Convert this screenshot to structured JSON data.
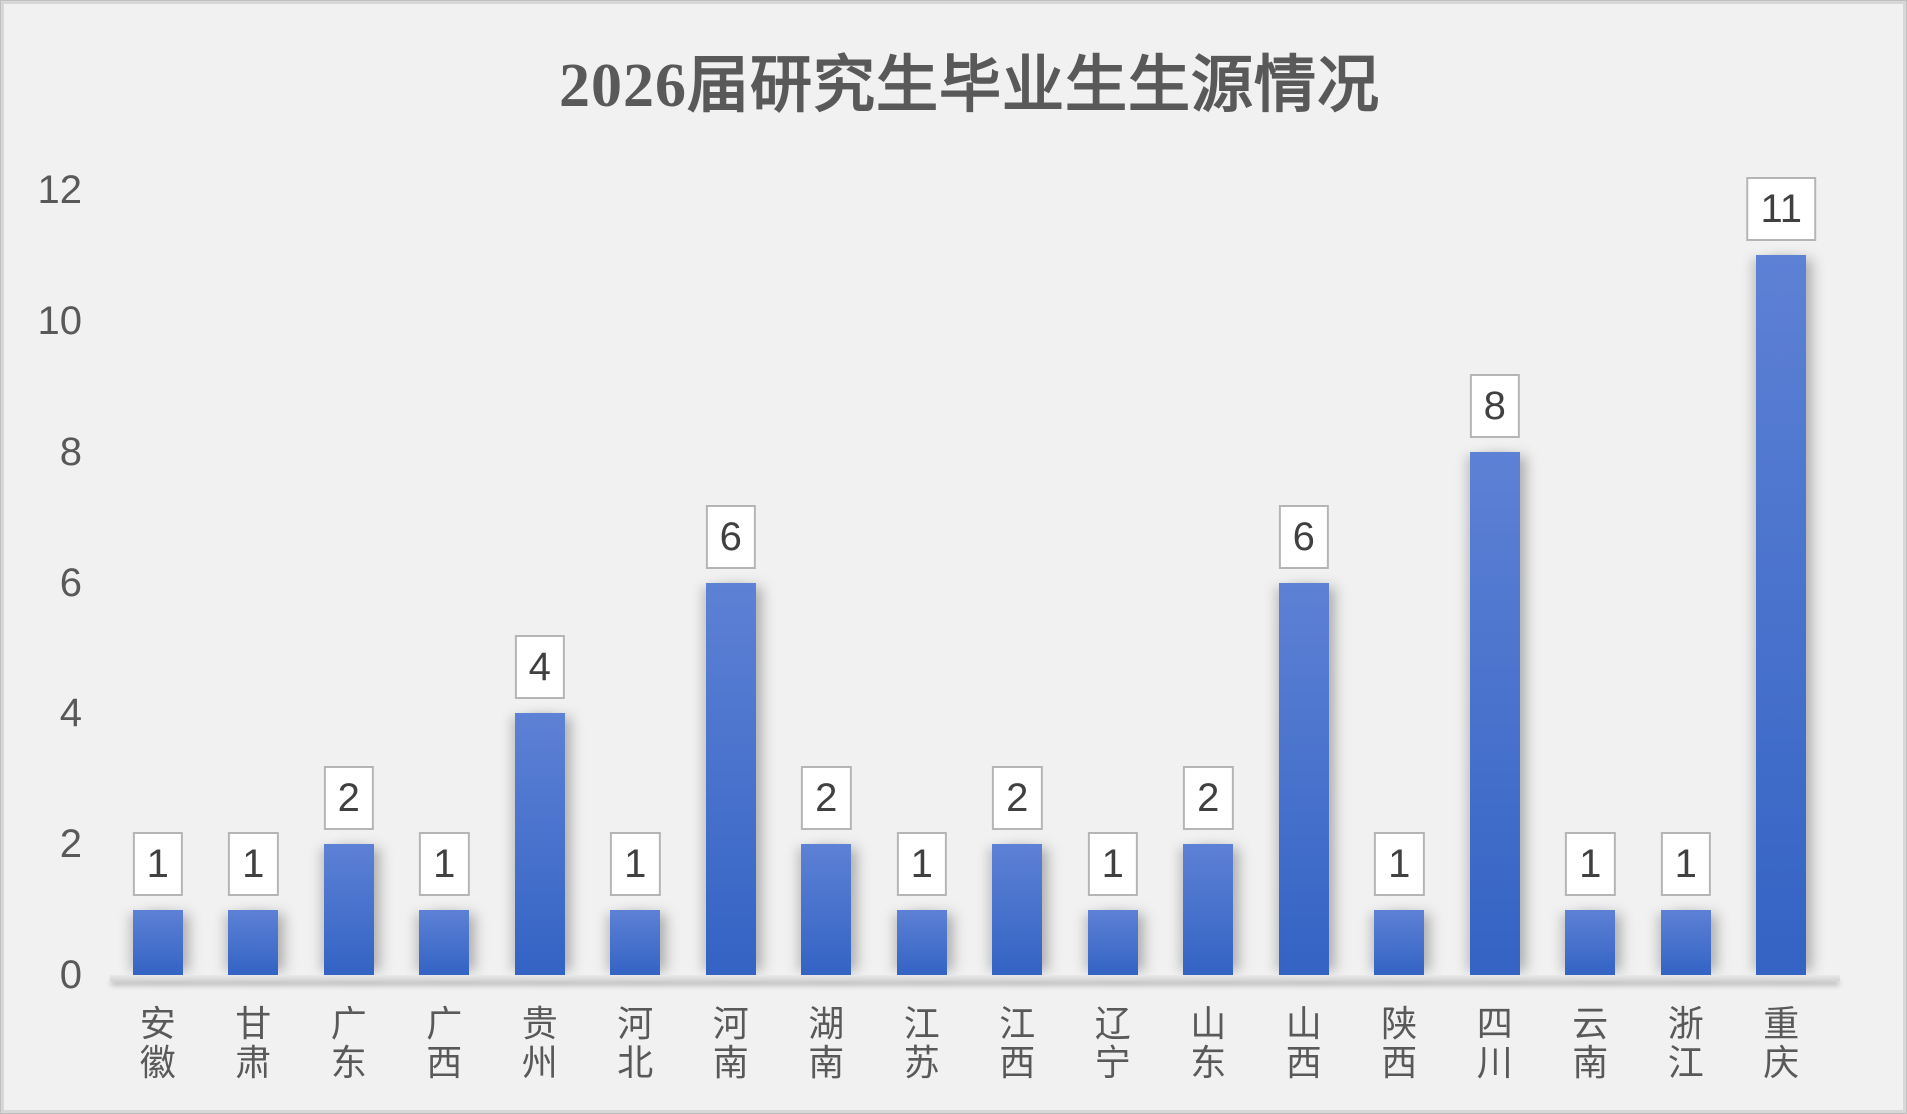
{
  "title": "2026届研究生毕业生生源情况",
  "chart_data": {
    "type": "bar",
    "title": "2026届研究生毕业生生源情况",
    "categories": [
      "安徽",
      "甘肃",
      "广东",
      "广西",
      "贵州",
      "河北",
      "河南",
      "湖南",
      "江苏",
      "江西",
      "辽宁",
      "山东",
      "山西",
      "陕西",
      "四川",
      "云南",
      "浙江",
      "重庆"
    ],
    "values": [
      1,
      1,
      2,
      1,
      4,
      1,
      6,
      2,
      1,
      2,
      1,
      2,
      6,
      1,
      8,
      1,
      1,
      11
    ],
    "xlabel": "",
    "ylabel": "",
    "ylim": [
      0,
      12
    ],
    "yticks": [
      0,
      2,
      4,
      6,
      8,
      10,
      12
    ],
    "grid": false,
    "legend_position": "none",
    "data_labels": true,
    "category_label_orientation": "vertical-stacked",
    "colors": {
      "bar_top": "#5d81d5",
      "bar_bottom": "#3463c4",
      "value_box_bg": "#ffffff",
      "value_box_border": "#b5b5b5",
      "value_text": "#404040",
      "axis_text": "#595959",
      "title_text": "#595959",
      "background": "#f1f1f1",
      "axis_line": "#d9d9d9"
    }
  }
}
